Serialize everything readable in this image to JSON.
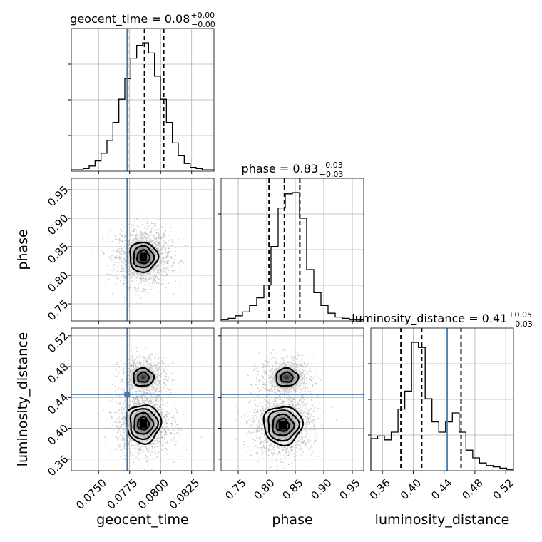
{
  "chart_data": {
    "type": "corner",
    "truth_color": "#4878a8",
    "parameters": [
      {
        "name": "geocent_time",
        "axis_label": "geocent_time",
        "title_main": "geocent_time = 0.08",
        "title_plus": "+0.00",
        "title_minus": "−0.00",
        "range": [
          0.0728,
          0.0843
        ],
        "ticks": [
          0.075,
          0.0775,
          0.08,
          0.0825
        ],
        "tick_labels": [
          "0.0750",
          "0.0775",
          "0.0800",
          "0.0825"
        ],
        "quantiles": [
          0.07735,
          0.0787,
          0.08025
        ],
        "truth": 0.0773,
        "hist": [
          1,
          1,
          2,
          4,
          8,
          14,
          24,
          38,
          56,
          72,
          88,
          98,
          100,
          92,
          74,
          56,
          38,
          22,
          12,
          6,
          3,
          2,
          1,
          1
        ]
      },
      {
        "name": "phase",
        "axis_label": "phase",
        "title_main": "phase = 0.83",
        "title_plus": "+0.03",
        "title_minus": "−0.03",
        "range": [
          0.72,
          0.97
        ],
        "ticks": [
          0.75,
          0.8,
          0.85,
          0.9,
          0.95
        ],
        "tick_labels": [
          "0.75",
          "0.80",
          "0.85",
          "0.90",
          "0.95"
        ],
        "quantiles": [
          0.804,
          0.831,
          0.858
        ],
        "truth": null,
        "hist": [
          1,
          2,
          4,
          7,
          12,
          18,
          28,
          58,
          88,
          99,
          100,
          80,
          40,
          22,
          12,
          6,
          3,
          2,
          1,
          1
        ]
      },
      {
        "name": "luminosity_distance",
        "axis_label": "luminosity_distance",
        "title_main": "luminosity_distance = 0.41",
        "title_plus": "+0.05",
        "title_minus": "−0.03",
        "range": [
          0.345,
          0.53
        ],
        "ticks": [
          0.36,
          0.4,
          0.44,
          0.48,
          0.52
        ],
        "tick_labels": [
          "0.36",
          "0.40",
          "0.44",
          "0.48",
          "0.52"
        ],
        "quantiles": [
          0.384,
          0.411,
          0.462
        ],
        "truth": 0.444,
        "hist": [
          25,
          27,
          24,
          30,
          48,
          62,
          100,
          96,
          56,
          38,
          30,
          38,
          45,
          30,
          16,
          10,
          6,
          4,
          3,
          2,
          1
        ]
      }
    ],
    "contours_2d": [
      {
        "x_param": "geocent_time",
        "y_param": "phase",
        "center": [
          0.0786,
          0.832
        ],
        "spread": [
          0.00095,
          0.022
        ],
        "levels": [
          0.6,
          1.2,
          1.8
        ]
      },
      {
        "x_param": "geocent_time",
        "y_param": "luminosity_distance",
        "modes": [
          {
            "center": [
              0.0786,
              0.406
            ],
            "spread": [
              0.00095,
              0.017
            ],
            "levels": [
              0.5,
              1.1,
              1.75,
              2.3
            ]
          },
          {
            "center": [
              0.0786,
              0.466
            ],
            "spread": [
              0.00085,
              0.012
            ],
            "levels": [
              0.6,
              1.4
            ]
          }
        ]
      },
      {
        "x_param": "phase",
        "y_param": "luminosity_distance",
        "modes": [
          {
            "center": [
              0.828,
              0.404
            ],
            "spread": [
              0.023,
              0.017
            ],
            "levels": [
              0.5,
              1.1,
              1.75,
              2.3
            ]
          },
          {
            "center": [
              0.835,
              0.466
            ],
            "spread": [
              0.02,
              0.012
            ],
            "levels": [
              0.6,
              1.4
            ]
          }
        ]
      }
    ]
  }
}
